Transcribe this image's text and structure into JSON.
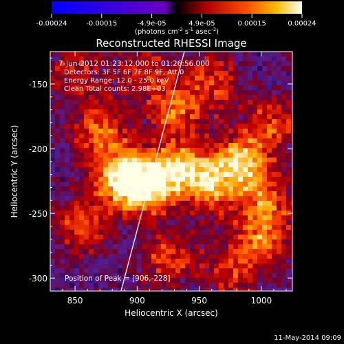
{
  "colorbar": {
    "ticks": [
      "-0.00024",
      "-0.00015",
      "-4.9e-05",
      "4.9e-05",
      "0.00015",
      "0.00024"
    ],
    "unit_main": "(photons cm",
    "unit_exp1": "-2",
    "unit_mid": " s",
    "unit_exp2": "-1",
    "unit_end": " asec",
    "unit_exp3": "-2",
    "unit_close": ")"
  },
  "chart_data": {
    "type": "heatmap",
    "title": "Reconstructed RHESSI Image",
    "xlabel": "Heliocentric X (arcsec)",
    "ylabel": "Heliocentric Y (arcsec)",
    "xlim": [
      830,
      1025
    ],
    "ylim": [
      -310,
      -125
    ],
    "x_ticks": [
      850,
      900,
      950,
      1000
    ],
    "y_ticks": [
      -150,
      -200,
      -250,
      -300
    ],
    "color_range": [
      -0.00024,
      0.00024
    ],
    "limb_line": {
      "x": [
        887,
        938
      ],
      "y": [
        -310,
        -125
      ]
    },
    "peak": {
      "x": 906,
      "y": -228
    },
    "hot_spots": [
      {
        "x": 906,
        "y": -228,
        "level": 1.0
      },
      {
        "x": 885,
        "y": -222,
        "level": 0.85
      },
      {
        "x": 935,
        "y": -215,
        "level": 0.75
      },
      {
        "x": 960,
        "y": -228,
        "level": 0.7
      },
      {
        "x": 985,
        "y": -210,
        "level": 0.8
      },
      {
        "x": 1000,
        "y": -270,
        "level": 0.6
      },
      {
        "x": 870,
        "y": -185,
        "level": 0.6
      },
      {
        "x": 930,
        "y": -170,
        "level": 0.55
      },
      {
        "x": 960,
        "y": -150,
        "level": 0.5
      },
      {
        "x": 855,
        "y": -260,
        "level": 0.55
      },
      {
        "x": 925,
        "y": -285,
        "level": 0.5
      },
      {
        "x": 975,
        "y": -295,
        "level": 0.45
      },
      {
        "x": 1010,
        "y": -180,
        "level": 0.5
      },
      {
        "x": 850,
        "y": -140,
        "level": 0.45
      },
      {
        "x": 905,
        "y": -140,
        "level": 0.4
      },
      {
        "x": 1005,
        "y": -240,
        "level": 0.55
      }
    ],
    "annotations": {
      "time_range": "7-Jun-2012 01:23:12.000 to 01:26:56.000",
      "detectors": "Detectors: 3F 5F 6F 7F 8F 9F, Att 0",
      "energy": "Energy Range: 12.0 - 25.0 keV",
      "clean": "Clean    Total counts: 2.98E+03",
      "peak_text": "Position of Peak = [906,-228]"
    }
  },
  "footer": {
    "timestamp": "11-May-2014 09:09"
  }
}
